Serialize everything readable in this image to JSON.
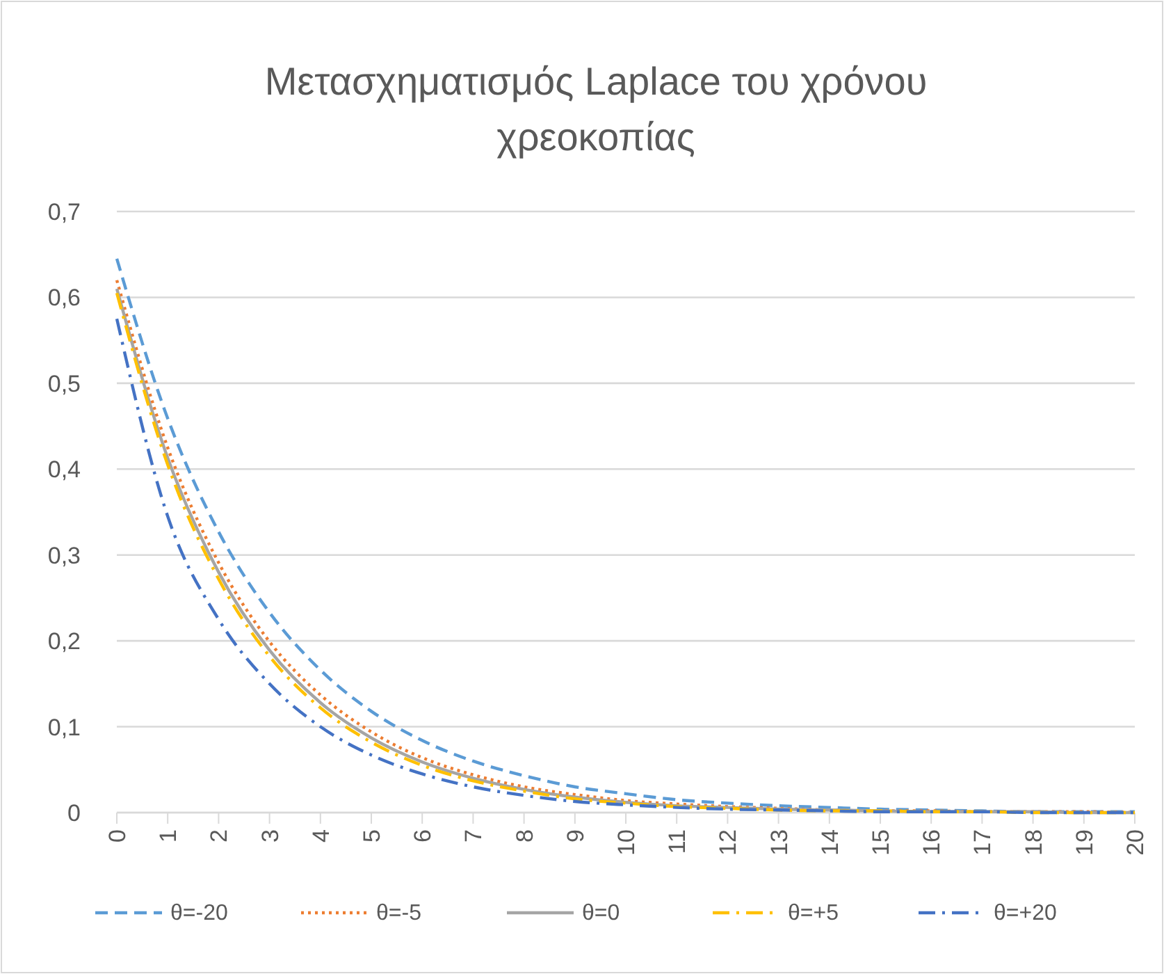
{
  "chart_data": {
    "type": "line",
    "title": "Μετασχηματισμός Laplace του χρόνου χρεοκοπίας",
    "x": [
      0,
      1,
      2,
      3,
      4,
      5,
      6,
      7,
      8,
      9,
      10,
      11,
      12,
      13,
      14,
      15,
      16,
      17,
      18,
      19,
      20
    ],
    "xlim": [
      0,
      20
    ],
    "xticks": [
      0,
      1,
      2,
      3,
      4,
      5,
      6,
      7,
      8,
      9,
      10,
      11,
      12,
      13,
      14,
      15,
      16,
      17,
      18,
      19,
      20
    ],
    "ylim": [
      0,
      0.7
    ],
    "yticks": [
      0,
      {
        "value": 0.1,
        "label": "0,1"
      },
      {
        "value": 0.2,
        "label": "0,2"
      },
      {
        "value": 0.3,
        "label": "0,3"
      },
      {
        "value": 0.4,
        "label": "0,4"
      },
      {
        "value": 0.5,
        "label": "0,5"
      },
      {
        "value": 0.6,
        "label": "0,6"
      },
      {
        "value": 0.7,
        "label": "0,7"
      }
    ],
    "grid": "y",
    "legend": "bottom",
    "marker": "none",
    "series": [
      {
        "name": "θ=-20",
        "color": "#5b9bd5",
        "line_style": "dashed",
        "values": [
          0.645,
          0.459,
          0.327,
          0.233,
          0.166,
          0.118,
          0.084,
          0.06,
          0.043,
          0.03,
          0.022,
          0.015,
          0.011,
          0.008,
          0.006,
          0.004,
          0.003,
          0.002,
          0.001,
          0.001,
          0.001
        ]
      },
      {
        "name": "θ=-5",
        "color": "#ed7d31",
        "line_style": "dotted",
        "values": [
          0.62,
          0.425,
          0.291,
          0.199,
          0.137,
          0.094,
          0.064,
          0.044,
          0.03,
          0.021,
          0.014,
          0.01,
          0.007,
          0.005,
          0.003,
          0.002,
          0.002,
          0.001,
          0.001,
          0.001,
          0
        ]
      },
      {
        "name": "θ=0",
        "color": "#a5a5a5",
        "line_style": "solid",
        "values": [
          0.61,
          0.413,
          0.28,
          0.189,
          0.128,
          0.087,
          0.059,
          0.04,
          0.027,
          0.018,
          0.012,
          0.008,
          0.006,
          0.004,
          0.003,
          0.002,
          0.001,
          0.001,
          0.001,
          0,
          0
        ]
      },
      {
        "name": "θ=+5",
        "color": "#ffc000",
        "line_style": "dashdot",
        "values": [
          0.605,
          0.405,
          0.272,
          0.182,
          0.122,
          0.082,
          0.055,
          0.037,
          0.025,
          0.016,
          0.011,
          0.007,
          0.005,
          0.003,
          0.002,
          0.002,
          0.001,
          0.001,
          0,
          0,
          0
        ]
      },
      {
        "name": "θ=+20",
        "color": "#4472c4",
        "line_style": "dashdot",
        "values": [
          0.575,
          0.345,
          0.225,
          0.15,
          0.1,
          0.067,
          0.045,
          0.03,
          0.02,
          0.013,
          0.009,
          0.006,
          0.004,
          0.003,
          0.002,
          0.001,
          0.001,
          0.001,
          0,
          0,
          0
        ]
      }
    ]
  }
}
